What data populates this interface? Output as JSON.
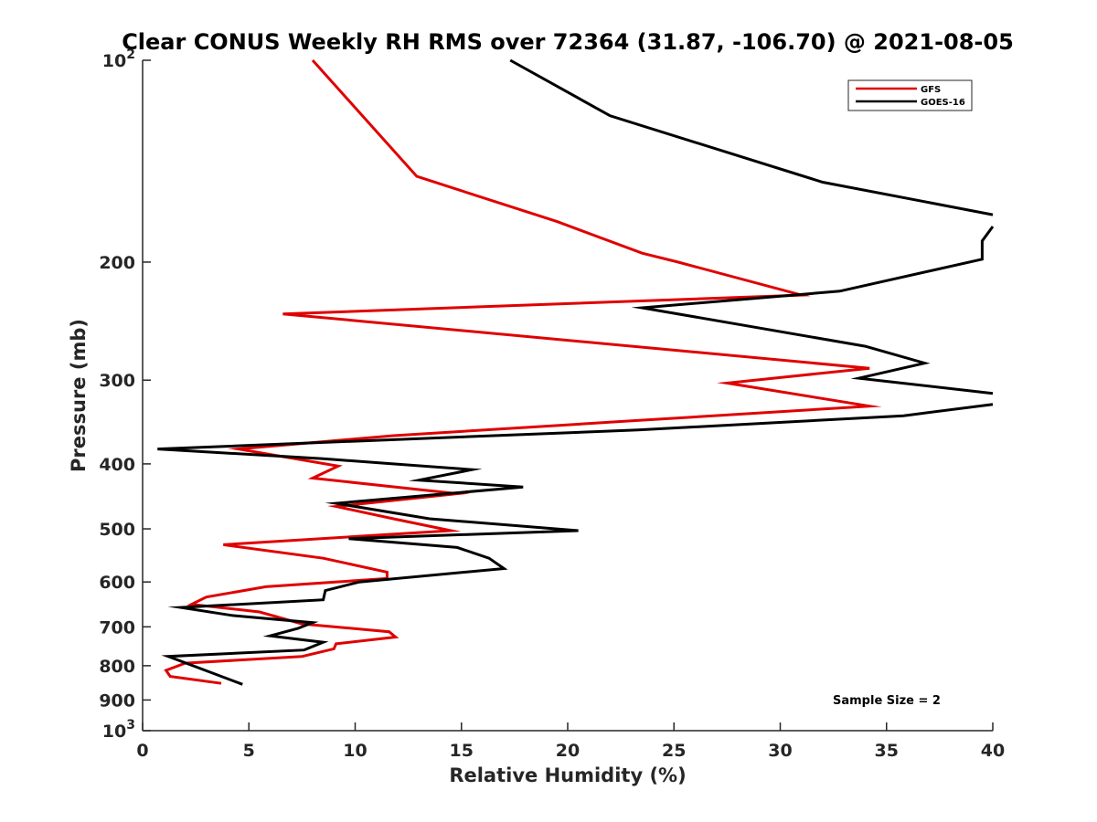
{
  "chart_data": {
    "type": "line",
    "title": "Clear CONUS Weekly RH RMS over 72364 (31.87, -106.70) @ 2021-08-05",
    "xlabel": "Relative Humidity (%)",
    "ylabel": "Pressure (mb)",
    "xlim": [
      0,
      40
    ],
    "ylim": [
      100,
      1000
    ],
    "y_scale": "log",
    "y_reversed": true,
    "grid": false,
    "legend_position": "top-right",
    "x_ticks": [
      "0",
      "5",
      "10",
      "15",
      "20",
      "25",
      "30",
      "35",
      "40"
    ],
    "y_ticks": [
      {
        "value": 100,
        "base": "10",
        "exp": "2"
      },
      {
        "value": 200,
        "label": "200"
      },
      {
        "value": 300,
        "label": "300"
      },
      {
        "value": 400,
        "label": "400"
      },
      {
        "value": 500,
        "label": "500"
      },
      {
        "value": 600,
        "label": "600"
      },
      {
        "value": 700,
        "label": "700"
      },
      {
        "value": 800,
        "label": "800"
      },
      {
        "value": 900,
        "label": "900"
      },
      {
        "value": 1000,
        "base": "10",
        "exp": "3"
      }
    ],
    "annotation": "Sample Size = 2",
    "series": [
      {
        "name": "GFS",
        "color": "#e00000",
        "x": [
          8.0,
          12.9,
          19.5,
          23.5,
          25.2,
          31.0,
          6.6,
          34.2,
          27.5,
          34.2,
          23.0,
          11.8,
          4.5,
          9.2,
          8.0,
          14.8,
          9.1,
          11.8,
          14.5,
          3.8,
          8.5,
          11.5,
          11.5,
          5.8,
          3.0,
          2.3,
          5.5,
          7.5,
          11.6,
          11.9,
          9.1,
          9.0,
          7.5,
          2.0,
          1.1,
          1.3,
          3.7
        ],
        "y": [
          100,
          149,
          174,
          194,
          200,
          224,
          239,
          288,
          303,
          328,
          345,
          363,
          380,
          403,
          420,
          443,
          463,
          483,
          503,
          528,
          553,
          580,
          593,
          610,
          632,
          648,
          665,
          693,
          712,
          725,
          742,
          755,
          775,
          793,
          813,
          830,
          850
        ]
      },
      {
        "name": "GOES-16",
        "color": "#000000",
        "x": [
          17.3,
          22.0,
          32.0,
          40.0,
          null,
          40.0,
          39.5,
          39.5,
          32.8,
          23.5,
          34.0,
          36.8,
          33.7,
          40.0,
          null,
          40.0,
          35.8,
          23.3,
          0.7,
          8.5,
          15.5,
          13.0,
          17.9,
          9.1,
          13.5,
          20.5,
          9.7,
          14.8,
          16.3,
          17.0,
          10.2,
          8.6,
          8.5,
          1.8,
          4.2,
          8.0,
          7.3,
          6.0,
          8.5,
          7.6,
          1.2,
          4.7
        ],
        "y": [
          100,
          121,
          152,
          170,
          null,
          177,
          186,
          198,
          221,
          234,
          267,
          283,
          298,
          314,
          null,
          326,
          339,
          356,
          380,
          393,
          408,
          423,
          433,
          458,
          483,
          503,
          517,
          533,
          553,
          573,
          600,
          618,
          638,
          655,
          673,
          690,
          704,
          722,
          738,
          758,
          775,
          853
        ]
      }
    ]
  }
}
